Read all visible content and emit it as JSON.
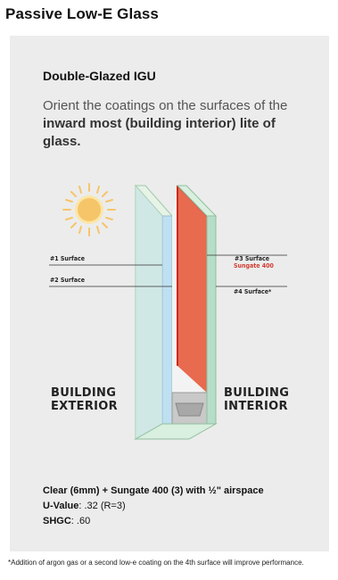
{
  "page": {
    "title": "Passive Low-E Glass"
  },
  "panel": {
    "title": "Double-Glazed IGU",
    "intro_before": "Orient the coatings on the surfaces of the ",
    "intro_bold": "inward most (building interior) lite of glass."
  },
  "diagram": {
    "surface1": "#1 Surface",
    "surface2": "#2 Surface",
    "surface3": "#3 Surface",
    "coating": "Sungate 400",
    "surface4": "#4 Surface*",
    "exterior_line1": "BUILDING",
    "exterior_line2": "EXTERIOR",
    "interior_line1": "BUILDING",
    "interior_line2": "INTERIOR",
    "colors": {
      "outer_lite": "#bfe0f0",
      "airspace": "#e86a4f",
      "coating_edge": "#cc2a1a",
      "glass_edge": "#b6ddc8",
      "sun": "#f6c56a"
    },
    "icons": [
      "sun-icon",
      "spacer-icon"
    ]
  },
  "specs": {
    "line1": "Clear (6mm) + Sungate 400 (3) with ½\" airspace",
    "uvalue_label": "U-Value",
    "uvalue_value": ": .32 (R=3)",
    "shgc_label": "SHGC",
    "shgc_value": ": .60"
  },
  "footnote": "*Addition of argon gas or a second low-e coating on the 4th surface will improve performance."
}
